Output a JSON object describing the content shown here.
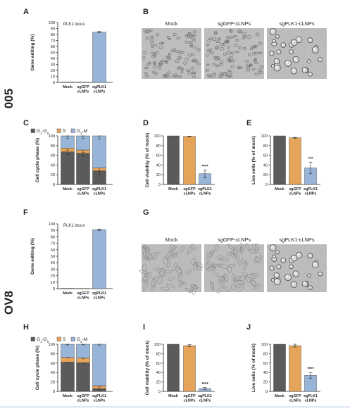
{
  "colors": {
    "mock": "#5b5b5b",
    "sggfp": "#e5a45a",
    "sgplk1": "#98b4d8",
    "g1": "#5b5b5b",
    "s": "#e5a45a",
    "g2m": "#98b4d8"
  },
  "rows": [
    {
      "label": "005",
      "editing": {
        "panel": "A",
        "annotation": "PLK1 locus",
        "ylabel": "Gene editing (%)",
        "yticks": [
          "0",
          "10",
          "20",
          "30",
          "40",
          "50",
          "60",
          "70",
          "80",
          "90",
          "100"
        ],
        "categories": [
          "Mock",
          "sgGFP cLNPs",
          "sgPLK1 cLNPs"
        ]
      },
      "micro": {
        "panel": "B",
        "labels": [
          "Mock",
          "sgGFP-cLNPs",
          "sgPLK1-cLNPs"
        ]
      },
      "cellcycle": {
        "panel": "C",
        "ylabel": "Cell cycle phase (%)",
        "legend": [
          "G1-G0",
          "S",
          "G2-M"
        ],
        "yticks": [
          "0",
          "20",
          "40",
          "60",
          "80",
          "100"
        ],
        "categories": [
          "Mock",
          "sgGFP cLNPs",
          "sgPLK1 cLNPs"
        ]
      },
      "viability": {
        "panel": "D",
        "ylabel": "Cell viability (% of mock)",
        "yticks": [
          "0",
          "20",
          "40",
          "60",
          "80",
          "100"
        ],
        "categories": [
          "Mock",
          "sgGFP cLNPs",
          "sgPLK1 cLNPs"
        ],
        "sig": "****"
      },
      "live": {
        "panel": "E",
        "ylabel": "Live cells (% of mock)",
        "yticks": [
          "0",
          "20",
          "40",
          "60",
          "80",
          "100"
        ],
        "categories": [
          "Mock",
          "sgGFP cLNPs",
          "sgPLK1 cLNPs"
        ],
        "sig": "***"
      }
    },
    {
      "label": "OV8",
      "editing": {
        "panel": "F",
        "annotation": "PLK1 locus",
        "ylabel": "Gene editing (%)",
        "yticks": [
          "0",
          "10",
          "20",
          "30",
          "40",
          "50",
          "60",
          "70",
          "80",
          "90",
          "100"
        ],
        "categories": [
          "Mock",
          "sgGFP cLNPs",
          "sgPLK1 cLNPs"
        ]
      },
      "micro": {
        "panel": "G",
        "labels": [
          "Mock",
          "sgGFP-cLNPs",
          "sgPLK1-cLNPs"
        ]
      },
      "cellcycle": {
        "panel": "H",
        "ylabel": "Cell cycle phase (%)",
        "legend": [
          "G1-G0",
          "S",
          "G2-M"
        ],
        "yticks": [
          "0",
          "20",
          "40",
          "60",
          "80",
          "100"
        ],
        "categories": [
          "Mock",
          "sgGFP cLNPs",
          "sgPLK1 cLNPs"
        ]
      },
      "viability": {
        "panel": "I",
        "ylabel": "Cell viability (% of mock)",
        "yticks": [
          "0",
          "20",
          "40",
          "60",
          "80",
          "100"
        ],
        "categories": [
          "Mock",
          "sgGFP cLNPs",
          "sgPLK1 cLNPs"
        ],
        "sig": "****"
      },
      "live": {
        "panel": "J",
        "ylabel": "Live cells (% of mock)",
        "yticks": [
          "0",
          "20",
          "40",
          "60",
          "80",
          "100"
        ],
        "categories": [
          "Mock",
          "sgGFP cLNPs",
          "sgPLK1 cLNPs"
        ],
        "sig": "****"
      }
    }
  ],
  "chart_data": [
    {
      "panel": "A",
      "type": "bar",
      "ylabel": "Gene editing (%)",
      "ylim": [
        0,
        100
      ],
      "categories": [
        "Mock",
        "sgGFP cLNPs",
        "sgPLK1 cLNPs"
      ],
      "values": [
        0.5,
        0.5,
        84
      ],
      "errors": [
        0,
        0,
        1
      ]
    },
    {
      "panel": "C",
      "type": "bar",
      "stacked": true,
      "ylabel": "Cell cycle phase (%)",
      "ylim": [
        0,
        100
      ],
      "categories": [
        "Mock",
        "sgGFP cLNPs",
        "sgPLK1 cLNPs"
      ],
      "series": [
        {
          "name": "G1-G0",
          "values": [
            67,
            64,
            28
          ]
        },
        {
          "name": "S",
          "values": [
            8,
            7,
            6
          ]
        },
        {
          "name": "G2-M",
          "values": [
            25,
            29,
            66
          ]
        }
      ],
      "errors": [
        5,
        5,
        7
      ]
    },
    {
      "panel": "D",
      "type": "bar",
      "ylabel": "Cell viability (% of mock)",
      "ylim": [
        0,
        100
      ],
      "categories": [
        "Mock",
        "sgGFP cLNPs",
        "sgPLK1 cLNPs"
      ],
      "values": [
        100,
        99,
        22
      ],
      "errors": [
        0,
        0.5,
        8
      ]
    },
    {
      "panel": "E",
      "type": "bar",
      "ylabel": "Live cells (% of mock)",
      "ylim": [
        0,
        100
      ],
      "categories": [
        "Mock",
        "sgGFP cLNPs",
        "sgPLK1 cLNPs"
      ],
      "values": [
        100,
        96,
        34
      ],
      "errors": [
        0,
        1,
        12
      ]
    },
    {
      "panel": "F",
      "type": "bar",
      "ylabel": "Gene editing (%)",
      "ylim": [
        0,
        100
      ],
      "categories": [
        "Mock",
        "sgGFP cLNPs",
        "sgPLK1 cLNPs"
      ],
      "values": [
        0.5,
        0.5,
        91
      ],
      "errors": [
        0,
        0,
        1
      ]
    },
    {
      "panel": "H",
      "type": "bar",
      "stacked": true,
      "ylabel": "Cell cycle phase (%)",
      "ylim": [
        0,
        100
      ],
      "categories": [
        "Mock",
        "sgGFP cLNPs",
        "sgPLK1 cLNPs"
      ],
      "series": [
        {
          "name": "G1-G0",
          "values": [
            62,
            61,
            6
          ]
        },
        {
          "name": "S",
          "values": [
            10,
            10,
            6
          ]
        },
        {
          "name": "G2-M",
          "values": [
            28,
            29,
            88
          ]
        }
      ],
      "errors": [
        1.5,
        1.5,
        3
      ]
    },
    {
      "panel": "I",
      "type": "bar",
      "ylabel": "Cell viability (% of mock)",
      "ylim": [
        0,
        100
      ],
      "categories": [
        "Mock",
        "sgGFP cLNPs",
        "sgPLK1 cLNPs"
      ],
      "values": [
        100,
        97,
        6
      ],
      "errors": [
        0,
        2,
        2
      ]
    },
    {
      "panel": "J",
      "type": "bar",
      "ylabel": "Live cells (% of mock)",
      "ylim": [
        0,
        100
      ],
      "categories": [
        "Mock",
        "sgGFP cLNPs",
        "sgPLK1 cLNPs"
      ],
      "values": [
        100,
        97,
        34
      ],
      "errors": [
        0,
        3,
        6
      ]
    }
  ]
}
